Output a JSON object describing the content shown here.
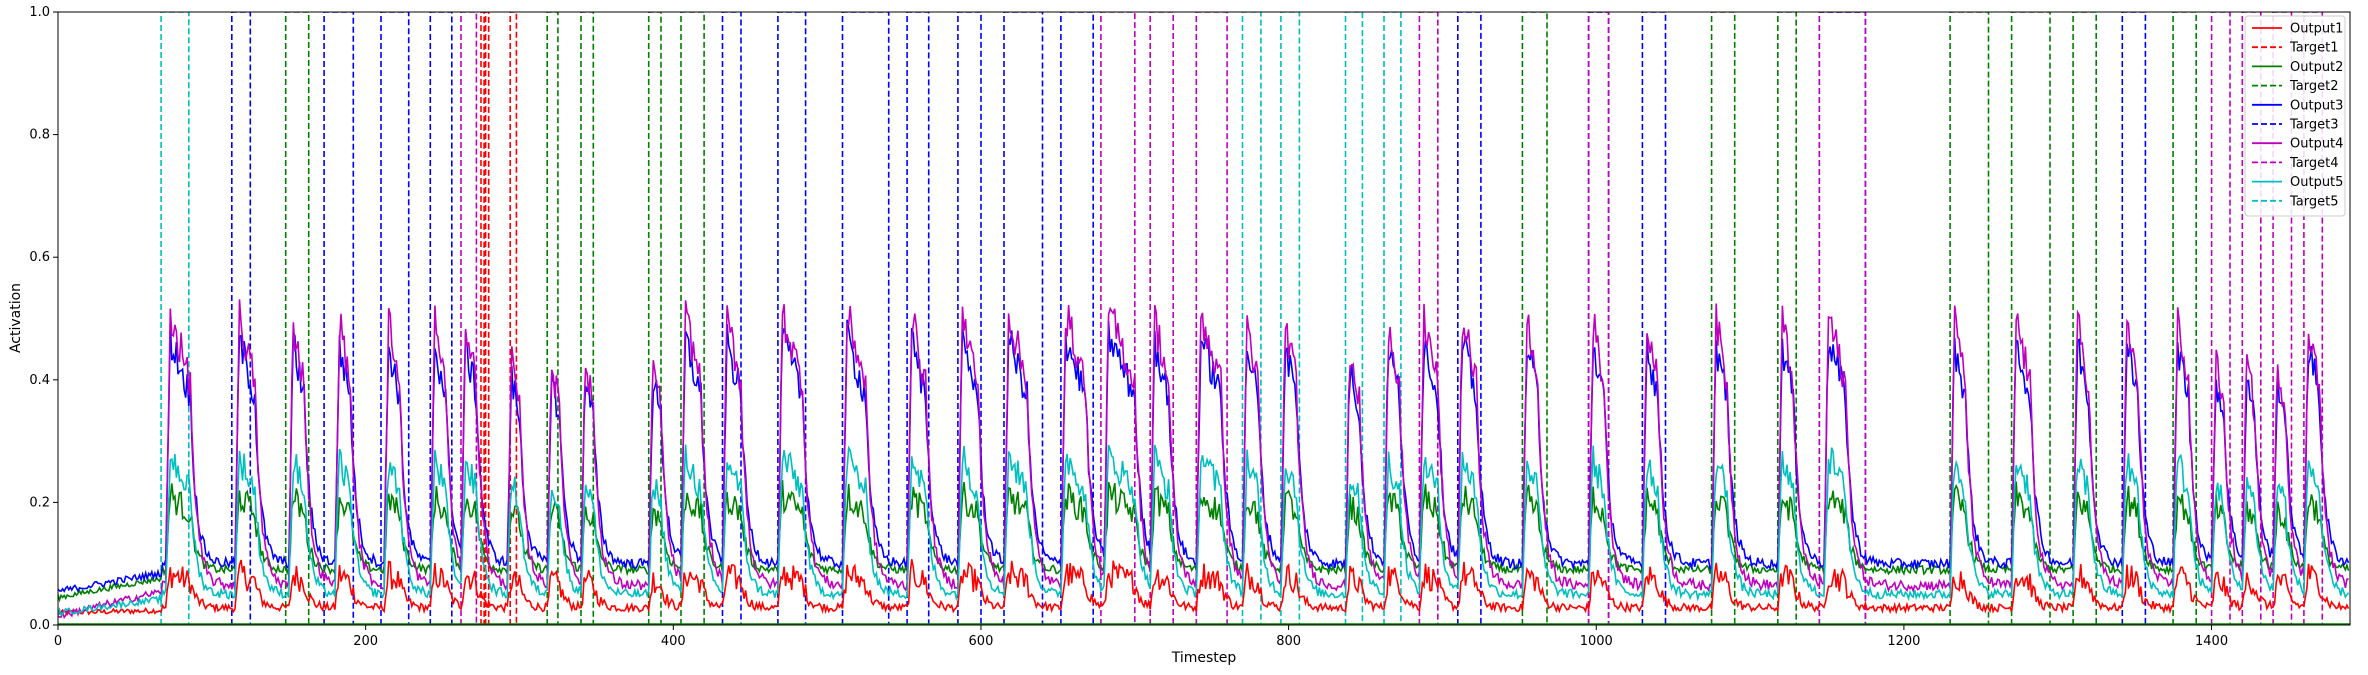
{
  "chart_data": {
    "type": "line",
    "title": "",
    "xlabel": "Timestep",
    "ylabel": "Activation",
    "xlim": [
      0,
      1490
    ],
    "ylim": [
      0,
      1.0
    ],
    "xticks": [
      0,
      200,
      400,
      600,
      800,
      1000,
      1200,
      1400
    ],
    "yticks": [
      0.0,
      0.2,
      0.4,
      0.6,
      0.8,
      1.0
    ],
    "xtick_labels": [
      "0",
      "200",
      "400",
      "600",
      "800",
      "1000",
      "1200",
      "1400"
    ],
    "ytick_labels": [
      "0.0",
      "0.2",
      "0.4",
      "0.6",
      "0.8",
      "1.0"
    ],
    "legend_position": "top-right",
    "series": [
      {
        "name": "Output1",
        "kind": "output",
        "color": "#ff0000",
        "baseline": 0.028,
        "gain": 0.06,
        "start": 0.02
      },
      {
        "name": "Target1",
        "kind": "target",
        "color": "#ff0000",
        "intervals": [
          [
            275,
            277
          ],
          [
            278,
            280
          ],
          [
            294,
            298
          ]
        ]
      },
      {
        "name": "Output2",
        "kind": "output",
        "color": "#008000",
        "baseline": 0.09,
        "gain": 0.13,
        "start": 0.045
      },
      {
        "name": "Target2",
        "kind": "target",
        "color": "#008000",
        "intervals": [
          [
            148,
            163
          ],
          [
            318,
            325
          ],
          [
            340,
            348
          ],
          [
            384,
            392
          ],
          [
            405,
            420
          ],
          [
            952,
            968
          ],
          [
            1075,
            1090
          ],
          [
            1118,
            1130
          ],
          [
            1230,
            1255
          ],
          [
            1270,
            1295
          ],
          [
            1310,
            1325
          ],
          [
            1375,
            1390
          ]
        ]
      },
      {
        "name": "Output3",
        "kind": "output",
        "color": "#0000ff",
        "baseline": 0.1,
        "gain": 0.39,
        "start": 0.055
      },
      {
        "name": "Target3",
        "kind": "target",
        "color": "#0000ff",
        "intervals": [
          [
            113,
            125
          ],
          [
            173,
            192
          ],
          [
            210,
            228
          ],
          [
            242,
            256
          ],
          [
            432,
            444
          ],
          [
            468,
            486
          ],
          [
            510,
            540
          ],
          [
            552,
            566
          ],
          [
            585,
            600
          ],
          [
            615,
            640
          ],
          [
            652,
            673
          ],
          [
            910,
            925
          ],
          [
            995,
            1008
          ],
          [
            1030,
            1045
          ],
          [
            1145,
            1175
          ],
          [
            1342,
            1357
          ]
        ]
      },
      {
        "name": "Output4",
        "kind": "output",
        "color": "#bf00bf",
        "baseline": 0.065,
        "gain": 0.47,
        "start": 0.015
      },
      {
        "name": "Target4",
        "kind": "target",
        "color": "#bf00bf",
        "intervals": [
          [
            262,
            272
          ],
          [
            678,
            700
          ],
          [
            710,
            725
          ],
          [
            740,
            760
          ],
          [
            885,
            897
          ],
          [
            995,
            1008
          ],
          [
            1145,
            1175
          ],
          [
            1400,
            1412
          ],
          [
            1420,
            1432
          ],
          [
            1440,
            1452
          ],
          [
            1460,
            1472
          ]
        ]
      },
      {
        "name": "Output5",
        "kind": "output",
        "color": "#00bfbf",
        "baseline": 0.05,
        "gain": 0.24,
        "start": 0.02
      },
      {
        "name": "Target5",
        "kind": "target",
        "color": "#00bfbf",
        "intervals": [
          [
            67,
            85
          ],
          [
            770,
            782
          ],
          [
            795,
            807
          ],
          [
            837,
            848
          ],
          [
            862,
            873
          ]
        ]
      }
    ],
    "pulses": [
      [
        70,
        86
      ],
      [
        115,
        128
      ],
      [
        150,
        160
      ],
      [
        180,
        190
      ],
      [
        212,
        222
      ],
      [
        242,
        252
      ],
      [
        262,
        272
      ],
      [
        292,
        300
      ],
      [
        318,
        326
      ],
      [
        340,
        348
      ],
      [
        384,
        392
      ],
      [
        405,
        418
      ],
      [
        432,
        444
      ],
      [
        468,
        484
      ],
      [
        510,
        525
      ],
      [
        552,
        564
      ],
      [
        585,
        598
      ],
      [
        615,
        630
      ],
      [
        652,
        668
      ],
      [
        680,
        700
      ],
      [
        710,
        722
      ],
      [
        740,
        756
      ],
      [
        770,
        780
      ],
      [
        795,
        805
      ],
      [
        837,
        846
      ],
      [
        862,
        872
      ],
      [
        885,
        897
      ],
      [
        910,
        922
      ],
      [
        952,
        962
      ],
      [
        995,
        1005
      ],
      [
        1030,
        1040
      ],
      [
        1075,
        1085
      ],
      [
        1118,
        1128
      ],
      [
        1148,
        1162
      ],
      [
        1230,
        1240
      ],
      [
        1270,
        1282
      ],
      [
        1310,
        1320
      ],
      [
        1342,
        1352
      ],
      [
        1375,
        1385
      ],
      [
        1400,
        1408
      ],
      [
        1420,
        1428
      ],
      [
        1440,
        1448
      ],
      [
        1460,
        1470
      ]
    ]
  }
}
